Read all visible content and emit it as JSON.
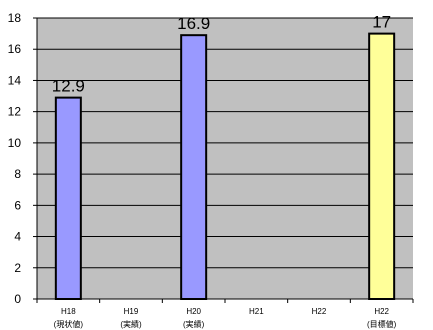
{
  "chart_data": {
    "type": "bar",
    "categories": [
      [
        "H18",
        "(現状値)"
      ],
      [
        "H19",
        "(実績)"
      ],
      [
        "H20",
        "(実績)"
      ],
      [
        "H21",
        ""
      ],
      [
        "H22",
        ""
      ],
      [
        "H22",
        "(目標値)"
      ]
    ],
    "values": [
      12.9,
      null,
      16.9,
      null,
      null,
      17
    ],
    "data_labels": [
      "12.9",
      "",
      "16.9",
      "",
      "",
      "17"
    ],
    "bar_colors": [
      "#9999ff",
      "#9999ff",
      "#9999ff",
      "#9999ff",
      "#9999ff",
      "#ffff99"
    ],
    "bar_stroke": "#000000",
    "plot_background": "#c0c0c0",
    "gridline_color": "#000000",
    "ylim": [
      0,
      18
    ],
    "yticks": [
      0,
      2,
      4,
      6,
      8,
      10,
      12,
      14,
      16,
      18
    ],
    "grid": true,
    "title": "",
    "xlabel": "",
    "ylabel": ""
  }
}
